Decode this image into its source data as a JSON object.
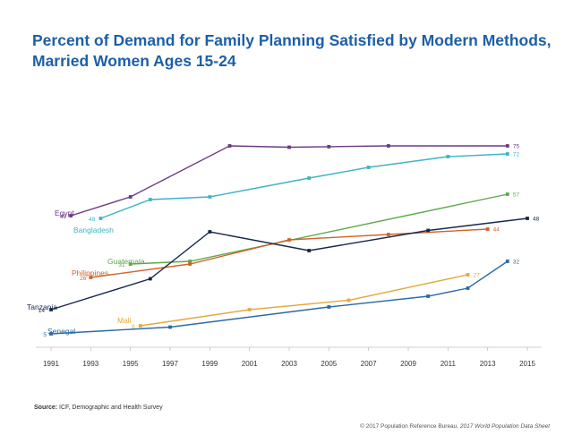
{
  "title_line1": "Percent of Demand for Family Planning Satisfied by Modern Methods,",
  "title_line2": "Married Women Ages 15-24",
  "source_label": "Source:",
  "source_text": "ICF, Demographic and Health Survey",
  "credit_prefix": "© 2017 Population Reference Bureau, ",
  "credit_italic": "2017 World Population Data Sheet",
  "chart_data": {
    "type": "line",
    "title": "Percent of Demand for Family Planning Satisfied by Modern Methods, Married Women Ages 15-24",
    "xlabel": "",
    "ylabel": "",
    "xlim": [
      1991,
      2015
    ],
    "ylim": [
      0,
      100
    ],
    "x_ticks": [
      1991,
      1993,
      1995,
      1997,
      1999,
      2001,
      2003,
      2005,
      2007,
      2009,
      2011,
      2013,
      2015
    ],
    "grid": false,
    "legend": "none",
    "series": [
      {
        "name": "Egypt",
        "color": "#6b3a82",
        "points": [
          [
            1992,
            49
          ],
          [
            1995,
            56
          ],
          [
            2000,
            75
          ],
          [
            2003,
            74.5
          ],
          [
            2005,
            74.7
          ],
          [
            2008,
            75
          ],
          [
            2014,
            75
          ]
        ],
        "start_label": "49",
        "end_label": "75"
      },
      {
        "name": "Bangladesh",
        "color": "#3fb3c4",
        "points": [
          [
            1993.5,
            48
          ],
          [
            1996,
            55
          ],
          [
            1999,
            56
          ],
          [
            2004,
            63
          ],
          [
            2007,
            67
          ],
          [
            2011,
            71
          ],
          [
            2014,
            72
          ]
        ],
        "start_label": "48",
        "end_label": "72"
      },
      {
        "name": "Guatemala",
        "color": "#5da94a",
        "points": [
          [
            1995,
            31
          ],
          [
            1998,
            32
          ],
          [
            2014,
            57
          ]
        ],
        "start_label": "31",
        "end_label": "57"
      },
      {
        "name": "Philippines",
        "color": "#d2622a",
        "points": [
          [
            1993,
            26
          ],
          [
            1998,
            31
          ],
          [
            2003,
            40
          ],
          [
            2008,
            42
          ],
          [
            2013,
            44
          ]
        ],
        "start_label": "26",
        "end_label": "44"
      },
      {
        "name": "Tanzania",
        "color": "#17284b",
        "points": [
          [
            1991,
            14
          ],
          [
            1996,
            25.5
          ],
          [
            1999,
            43
          ],
          [
            2004,
            36
          ],
          [
            2010,
            43.5
          ],
          [
            2015,
            48
          ]
        ],
        "start_label": "14",
        "end_label": "48"
      },
      {
        "name": "Mali",
        "color": "#e3a93a",
        "points": [
          [
            1995.5,
            8
          ],
          [
            2001,
            14
          ],
          [
            2006,
            17.5
          ],
          [
            2012,
            27
          ]
        ],
        "start_label": "8",
        "end_label": "27"
      },
      {
        "name": "Senegal",
        "color": "#2c6aa8",
        "points": [
          [
            1991,
            5
          ],
          [
            1997,
            7.5
          ],
          [
            2005,
            15
          ],
          [
            2010,
            19
          ],
          [
            2012,
            22
          ],
          [
            2014,
            32
          ]
        ],
        "start_label": "5",
        "end_label": "32"
      }
    ]
  }
}
